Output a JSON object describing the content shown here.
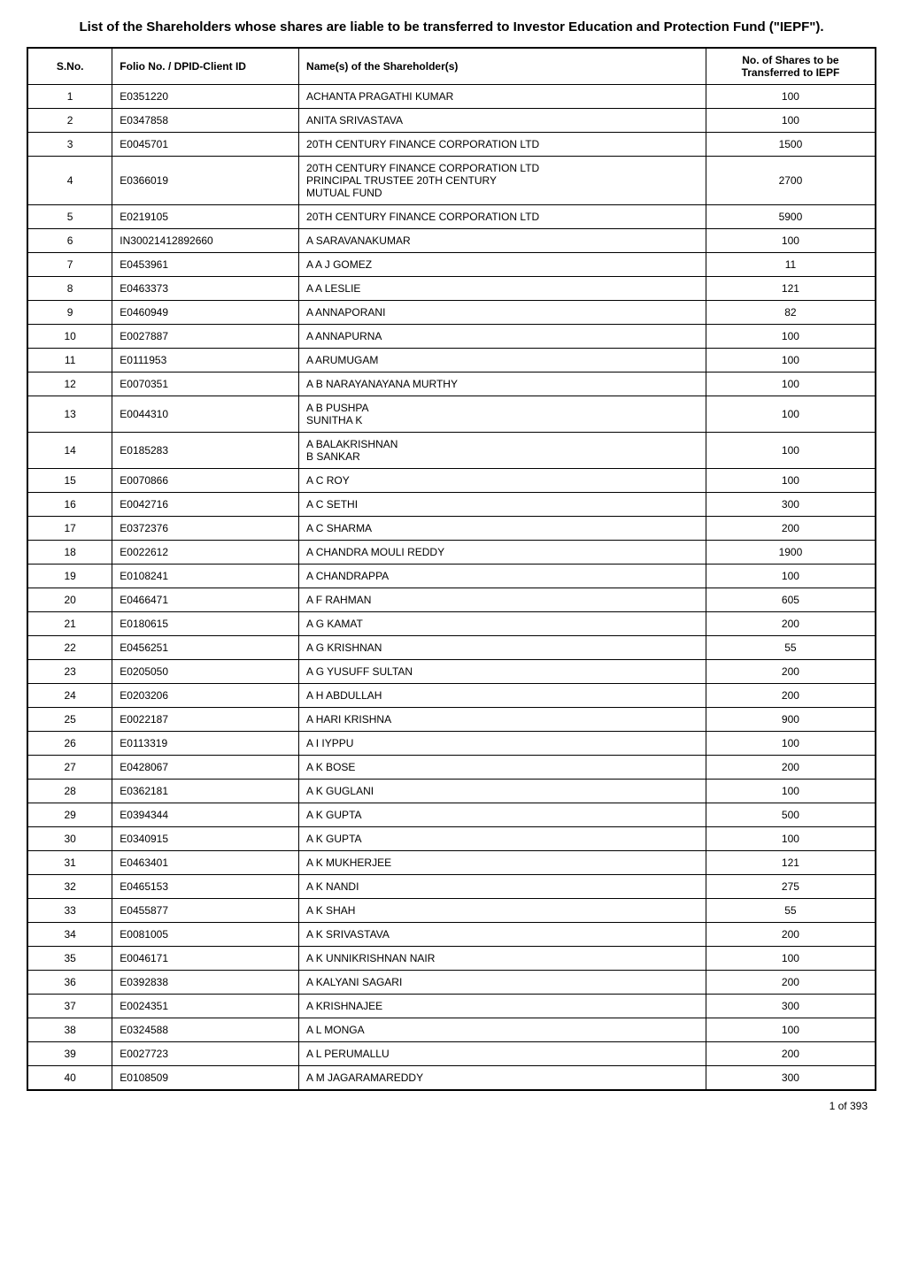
{
  "title": "List of the Shareholders whose shares are liable to be transferred to Investor Education and\nProtection Fund (\"IEPF\").",
  "columns": {
    "sno": "S.No.",
    "folio": "Folio No. /\nDPID-Client ID",
    "name": "Name(s) of the Shareholder(s)",
    "shares": "No. of Shares to\nbe Transferred to\nIEPF"
  },
  "rows": [
    {
      "sno": "1",
      "folio": "E0351220",
      "name": "ACHANTA PRAGATHI KUMAR",
      "shares": "100"
    },
    {
      "sno": "2",
      "folio": "E0347858",
      "name": "ANITA SRIVASTAVA",
      "shares": "100"
    },
    {
      "sno": "3",
      "folio": "E0045701",
      "name": "20TH CENTURY FINANCE CORPORATION LTD",
      "shares": "1500"
    },
    {
      "sno": "4",
      "folio": "E0366019",
      "name": "20TH CENTURY FINANCE CORPORATION LTD\nPRINCIPAL TRUSTEE 20TH CENTURY\nMUTUAL FUND",
      "shares": "2700"
    },
    {
      "sno": "5",
      "folio": "E0219105",
      "name": "20TH CENTURY FINANCE CORPORATION LTD",
      "shares": "5900"
    },
    {
      "sno": "6",
      "folio": "IN30021412892660",
      "name": "A  SARAVANAKUMAR",
      "shares": "100"
    },
    {
      "sno": "7",
      "folio": "E0453961",
      "name": "A A J GOMEZ",
      "shares": "11"
    },
    {
      "sno": "8",
      "folio": "E0463373",
      "name": "A A LESLIE",
      "shares": "121"
    },
    {
      "sno": "9",
      "folio": "E0460949",
      "name": "A ANNAPORANI",
      "shares": "82"
    },
    {
      "sno": "10",
      "folio": "E0027887",
      "name": "A ANNAPURNA",
      "shares": "100"
    },
    {
      "sno": "11",
      "folio": "E0111953",
      "name": "A ARUMUGAM",
      "shares": "100"
    },
    {
      "sno": "12",
      "folio": "E0070351",
      "name": "A B NARAYANAYANA MURTHY",
      "shares": "100"
    },
    {
      "sno": "13",
      "folio": "E0044310",
      "name": "A B PUSHPA\nSUNITHA K",
      "shares": "100"
    },
    {
      "sno": "14",
      "folio": "E0185283",
      "name": "A BALAKRISHNAN\nB SANKAR",
      "shares": "100"
    },
    {
      "sno": "15",
      "folio": "E0070866",
      "name": "A C ROY",
      "shares": "100"
    },
    {
      "sno": "16",
      "folio": "E0042716",
      "name": "A C SETHI",
      "shares": "300"
    },
    {
      "sno": "17",
      "folio": "E0372376",
      "name": "A C SHARMA",
      "shares": "200"
    },
    {
      "sno": "18",
      "folio": "E0022612",
      "name": "A CHANDRA MOULI REDDY",
      "shares": "1900"
    },
    {
      "sno": "19",
      "folio": "E0108241",
      "name": "A CHANDRAPPA",
      "shares": "100"
    },
    {
      "sno": "20",
      "folio": "E0466471",
      "name": "A F RAHMAN",
      "shares": "605"
    },
    {
      "sno": "21",
      "folio": "E0180615",
      "name": "A G KAMAT",
      "shares": "200"
    },
    {
      "sno": "22",
      "folio": "E0456251",
      "name": "A G KRISHNAN",
      "shares": "55"
    },
    {
      "sno": "23",
      "folio": "E0205050",
      "name": "A G YUSUFF SULTAN",
      "shares": "200"
    },
    {
      "sno": "24",
      "folio": "E0203206",
      "name": "A H ABDULLAH",
      "shares": "200"
    },
    {
      "sno": "25",
      "folio": "E0022187",
      "name": "A HARI KRISHNA",
      "shares": "900"
    },
    {
      "sno": "26",
      "folio": "E0113319",
      "name": "A I IYPPU",
      "shares": "100"
    },
    {
      "sno": "27",
      "folio": "E0428067",
      "name": "A K BOSE",
      "shares": "200"
    },
    {
      "sno": "28",
      "folio": "E0362181",
      "name": "A K GUGLANI",
      "shares": "100"
    },
    {
      "sno": "29",
      "folio": "E0394344",
      "name": "A K GUPTA",
      "shares": "500"
    },
    {
      "sno": "30",
      "folio": "E0340915",
      "name": "A K GUPTA",
      "shares": "100"
    },
    {
      "sno": "31",
      "folio": "E0463401",
      "name": "A K MUKHERJEE",
      "shares": "121"
    },
    {
      "sno": "32",
      "folio": "E0465153",
      "name": "A K NANDI",
      "shares": "275"
    },
    {
      "sno": "33",
      "folio": "E0455877",
      "name": "A K SHAH",
      "shares": "55"
    },
    {
      "sno": "34",
      "folio": "E0081005",
      "name": "A K SRIVASTAVA",
      "shares": "200"
    },
    {
      "sno": "35",
      "folio": "E0046171",
      "name": "A K UNNIKRISHNAN NAIR",
      "shares": "100"
    },
    {
      "sno": "36",
      "folio": "E0392838",
      "name": "A KALYANI SAGARI",
      "shares": "200"
    },
    {
      "sno": "37",
      "folio": "E0024351",
      "name": "A KRISHNAJEE",
      "shares": "300"
    },
    {
      "sno": "38",
      "folio": "E0324588",
      "name": "A L MONGA",
      "shares": "100"
    },
    {
      "sno": "39",
      "folio": "E0027723",
      "name": "A L PERUMALLU",
      "shares": "200"
    },
    {
      "sno": "40",
      "folio": "E0108509",
      "name": "A M JAGARAMAREDDY",
      "shares": "300"
    }
  ],
  "footer": "1 of  393",
  "styling": {
    "type": "table",
    "background_color": "#ffffff",
    "border_color": "#000000",
    "font_family": "Arial",
    "title_fontsize": 15,
    "header_fontsize": 12,
    "cell_fontsize": 12,
    "column_widths": {
      "sno": "10%",
      "folio": "22%",
      "name": "48%",
      "shares": "20%"
    },
    "column_alignment": {
      "sno": "center",
      "folio": "left",
      "name": "left",
      "shares": "center"
    }
  }
}
